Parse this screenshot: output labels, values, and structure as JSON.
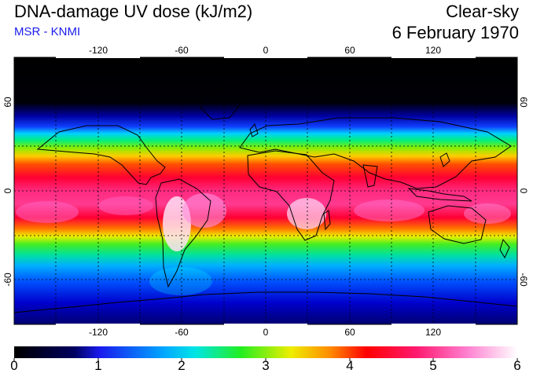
{
  "header": {
    "title": "DNA-damage UV dose (kJ/m2)",
    "subtitle": "MSR - KNMI",
    "sky_condition": "Clear-sky",
    "date": "6 February 1970"
  },
  "map": {
    "longitude_ticks": [
      "-120",
      "-60",
      "0",
      "60",
      "120"
    ],
    "latitude_ticks": [
      "60",
      "0",
      "-60"
    ],
    "band_colors": {
      "polar_night": "#000000",
      "low": "#0000cc",
      "mid": "#00cc66",
      "high": "#ff0033",
      "peak": "#ff88dd"
    }
  },
  "colorbar": {
    "labels": [
      "0",
      "1",
      "2",
      "3",
      "4",
      "5",
      "6"
    ],
    "colors": [
      "#000000",
      "#1a1aee",
      "#00e5ff",
      "#22ee22",
      "#ffee00",
      "#ff0033",
      "#ff80d0",
      "#ffffff"
    ]
  }
}
